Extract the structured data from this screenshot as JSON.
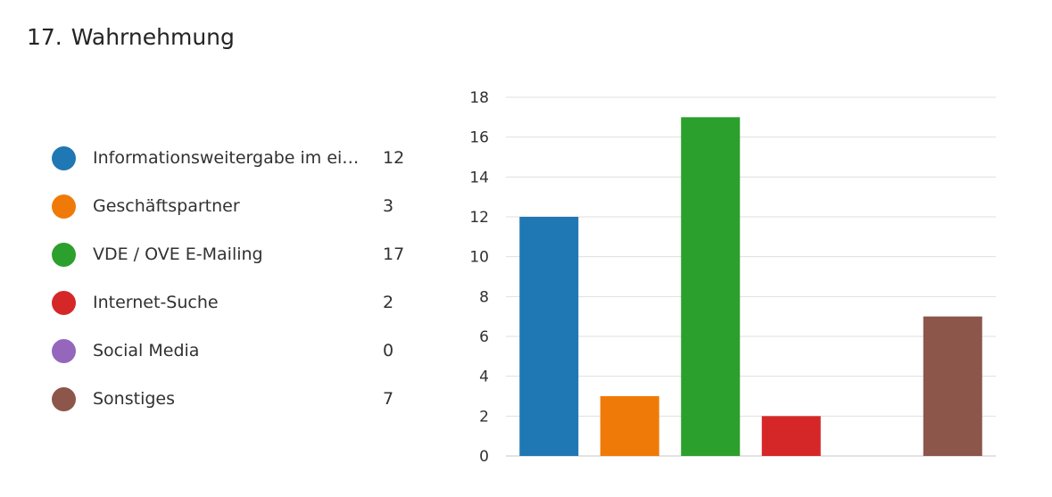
{
  "question": {
    "number": "17.",
    "title": "Wahrnehmung"
  },
  "legend": [
    {
      "label": "Informationsweitergabe im eigenen Unternehmen",
      "count": "12",
      "color": "#1f77b4"
    },
    {
      "label": "Geschäftspartner",
      "count": "3",
      "color": "#f07a08"
    },
    {
      "label": "VDE / OVE E-Mailing",
      "count": "17",
      "color": "#2ca02c"
    },
    {
      "label": "Internet-Suche",
      "count": "2",
      "color": "#d62728"
    },
    {
      "label": "Social Media",
      "count": "0",
      "color": "#9467bd"
    },
    {
      "label": "Sonstiges",
      "count": "7",
      "color": "#8c564b"
    }
  ],
  "chart_data": {
    "type": "bar",
    "categories": [
      "Informationsweitergabe im eigenen Unternehmen",
      "Geschäftspartner",
      "VDE / OVE E-Mailing",
      "Internet-Suche",
      "Social Media",
      "Sonstiges"
    ],
    "values": [
      12,
      3,
      17,
      2,
      0,
      7
    ],
    "colors": [
      "#1f77b4",
      "#f07a08",
      "#2ca02c",
      "#d62728",
      "#9467bd",
      "#8c564b"
    ],
    "ylim": [
      0,
      18
    ],
    "yticks": [
      0,
      2,
      4,
      6,
      8,
      10,
      12,
      14,
      16,
      18
    ],
    "grid": true,
    "legend": "left"
  }
}
